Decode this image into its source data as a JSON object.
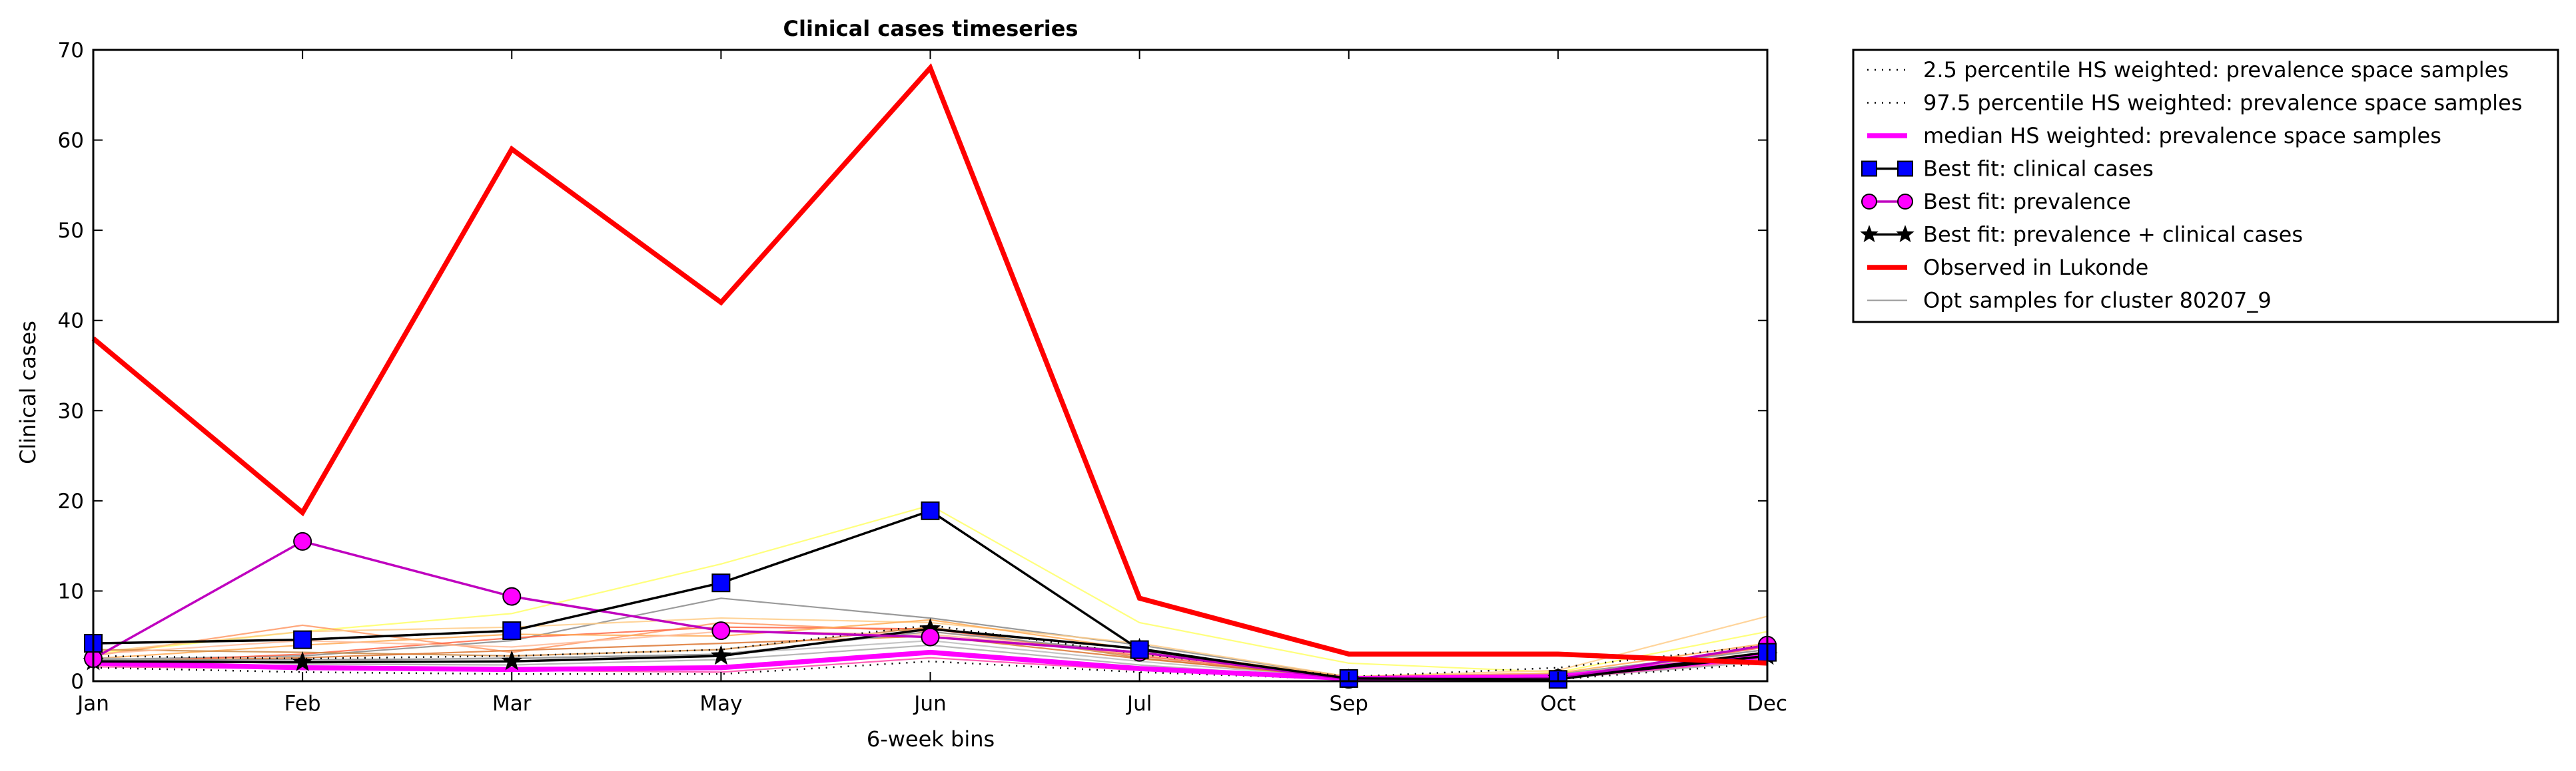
{
  "chart_data": {
    "type": "line",
    "title": "Clinical cases timeseries",
    "xlabel": "6-week bins",
    "ylabel": "Clinical cases",
    "categories": [
      "Jan",
      "Feb",
      "Mar",
      "May",
      "Jun",
      "Jul",
      "Sep",
      "Oct",
      "Dec"
    ],
    "ylim": [
      0,
      70
    ],
    "yticks": [
      0,
      10,
      20,
      30,
      40,
      50,
      60,
      70
    ],
    "grid": false,
    "legend_position": "outside-top-right",
    "series": [
      {
        "name": "2.5 percentile HS weighted: prevalence space samples",
        "color": "#000000",
        "style": "dotted",
        "values": [
          1.5,
          1.0,
          0.8,
          0.8,
          2.2,
          1.0,
          0.2,
          0.2,
          2.0
        ]
      },
      {
        "name": "97.5 percentile HS weighted: prevalence space samples",
        "color": "#000000",
        "style": "dotted",
        "values": [
          2.8,
          2.5,
          2.8,
          3.5,
          6.2,
          3.0,
          0.5,
          1.5,
          4.0
        ]
      },
      {
        "name": "median HS weighted: prevalence space samples",
        "color": "#ff00ff",
        "style": "solid-thick",
        "values": [
          2.0,
          1.5,
          1.3,
          1.5,
          3.2,
          1.4,
          0.3,
          0.5,
          2.8
        ]
      },
      {
        "name": "Best fit: clinical cases",
        "color": "#000000",
        "marker_color": "#0000ff",
        "marker": "square",
        "values": [
          4.2,
          4.6,
          5.6,
          10.9,
          18.9,
          3.5,
          0.3,
          0.2,
          3.2
        ]
      },
      {
        "name": "Best fit: prevalence",
        "color": "#bf00bf",
        "marker_color": "#ff00ff",
        "marker": "circle",
        "values": [
          2.5,
          15.5,
          9.4,
          5.6,
          4.9,
          3.2,
          0.2,
          0.3,
          4.0
        ]
      },
      {
        "name": "Best fit: prevalence + clinical cases",
        "color": "#000000",
        "marker": "star",
        "values": [
          2.2,
          2.1,
          2.2,
          2.8,
          5.8,
          3.6,
          0.2,
          0.3,
          2.8
        ]
      },
      {
        "name": "Observed in Lukonde",
        "color": "#ff0000",
        "style": "solid-thick",
        "values": [
          38,
          18.7,
          59,
          42,
          68,
          9.2,
          3.0,
          3.0,
          2.0
        ]
      },
      {
        "name": "Opt samples for cluster 80207_9",
        "color": "#999999",
        "style": "thin",
        "values": [
          2.3,
          2.4,
          2.5,
          3.0,
          5.5,
          3.2,
          0.4,
          0.6,
          3.5
        ]
      }
    ],
    "sample_lines": [
      {
        "color": "#ffff66",
        "values": [
          3.0,
          5.5,
          7.5,
          13.0,
          19.5,
          6.5,
          2.0,
          1.0,
          5.5
        ]
      },
      {
        "color": "#888888",
        "values": [
          2.4,
          2.8,
          4.5,
          9.2,
          7.0,
          4.0,
          0.5,
          0.8,
          3.5
        ]
      },
      {
        "color": "#ff9966",
        "values": [
          2.8,
          6.2,
          3.2,
          6.5,
          5.5,
          3.0,
          0.4,
          0.5,
          3.0
        ]
      },
      {
        "color": "#ffcc88",
        "values": [
          3.2,
          5.5,
          6.0,
          7.0,
          6.5,
          4.2,
          0.5,
          1.2,
          7.2
        ]
      },
      {
        "color": "#ff6644",
        "values": [
          2.0,
          3.0,
          4.8,
          6.0,
          5.8,
          2.8,
          0.3,
          0.4,
          3.8
        ]
      },
      {
        "color": "#ffaa55",
        "values": [
          2.5,
          4.0,
          5.2,
          5.0,
          6.8,
          3.5,
          0.5,
          0.9,
          4.2
        ]
      },
      {
        "color": "#cc8844",
        "values": [
          3.5,
          3.2,
          2.8,
          3.5,
          6.0,
          2.6,
          0.2,
          0.6,
          2.5
        ]
      },
      {
        "color": "#bbbbbb",
        "values": [
          1.8,
          2.2,
          2.6,
          3.0,
          4.5,
          2.2,
          0.3,
          0.4,
          2.6
        ]
      },
      {
        "color": "#aaaaaa",
        "values": [
          2.6,
          1.9,
          1.8,
          2.4,
          4.0,
          1.8,
          0.2,
          0.3,
          2.2
        ]
      },
      {
        "color": "#dd7733",
        "values": [
          2.2,
          2.6,
          3.4,
          4.2,
          5.0,
          2.5,
          0.4,
          0.5,
          3.0
        ]
      },
      {
        "color": "#ffbb99",
        "values": [
          3.0,
          4.5,
          3.8,
          5.5,
          5.2,
          3.0,
          0.3,
          0.7,
          3.2
        ]
      },
      {
        "color": "#ff44aa",
        "values": [
          1.6,
          1.4,
          1.2,
          1.0,
          2.6,
          1.2,
          0.2,
          0.3,
          2.4
        ]
      }
    ]
  }
}
